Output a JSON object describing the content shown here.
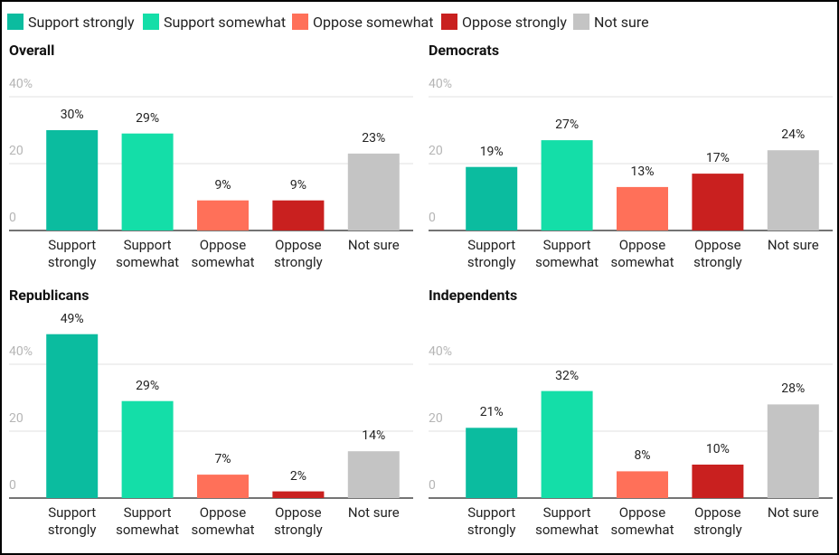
{
  "chart_data": [
    {
      "type": "bar",
      "title": "Overall",
      "categories": [
        "Support strongly",
        "Support somewhat",
        "Oppose somewhat",
        "Oppose strongly",
        "Not sure"
      ],
      "values": [
        30,
        29,
        9,
        9,
        23
      ],
      "value_labels": [
        "30%",
        "29%",
        "9%",
        "9%",
        "23%"
      ],
      "colors": [
        "#0bbc9f",
        "#14dea8",
        "#ff7059",
        "#c9201f",
        "#c4c4c4"
      ],
      "ylim": [
        0,
        48
      ],
      "yticks": [
        0,
        20,
        {
          "value": 40,
          "label": "40%"
        }
      ],
      "grid": true
    },
    {
      "type": "bar",
      "title": "Democrats",
      "categories": [
        "Support strongly",
        "Support somewhat",
        "Oppose somewhat",
        "Oppose strongly",
        "Not sure"
      ],
      "values": [
        19,
        27,
        13,
        17,
        24
      ],
      "value_labels": [
        "19%",
        "27%",
        "13%",
        "17%",
        "24%"
      ],
      "colors": [
        "#0bbc9f",
        "#14dea8",
        "#ff7059",
        "#c9201f",
        "#c4c4c4"
      ],
      "ylim": [
        0,
        48
      ],
      "yticks": [
        0,
        20,
        {
          "value": 40,
          "label": "40%"
        }
      ],
      "grid": true
    },
    {
      "type": "bar",
      "title": "Republicans",
      "categories": [
        "Support strongly",
        "Support somewhat",
        "Oppose somewhat",
        "Oppose strongly",
        "Not sure"
      ],
      "values": [
        49,
        29,
        7,
        2,
        14
      ],
      "value_labels": [
        "49%",
        "29%",
        "7%",
        "2%",
        "14%"
      ],
      "colors": [
        "#0bbc9f",
        "#14dea8",
        "#ff7059",
        "#c9201f",
        "#c4c4c4"
      ],
      "ylim": [
        0,
        55
      ],
      "yticks": [
        0,
        20,
        {
          "value": 40,
          "label": "40%"
        }
      ],
      "grid": true
    },
    {
      "type": "bar",
      "title": "Independents",
      "categories": [
        "Support strongly",
        "Support somewhat",
        "Oppose somewhat",
        "Oppose strongly",
        "Not sure"
      ],
      "values": [
        21,
        32,
        8,
        10,
        28
      ],
      "value_labels": [
        "21%",
        "32%",
        "8%",
        "10%",
        "28%"
      ],
      "colors": [
        "#0bbc9f",
        "#14dea8",
        "#ff7059",
        "#c9201f",
        "#c4c4c4"
      ],
      "ylim": [
        0,
        55
      ],
      "yticks": [
        0,
        20,
        {
          "value": 40,
          "label": "40%"
        }
      ],
      "grid": true
    }
  ]
}
